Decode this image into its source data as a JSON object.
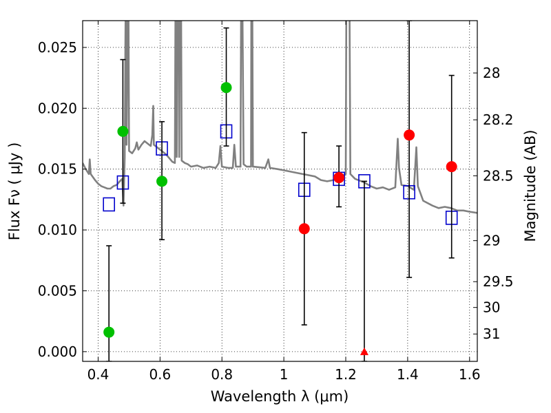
{
  "chart_data": {
    "type": "scatter",
    "xlabel": "Wavelength  λ (μm)",
    "ylabel": "Flux  Fν  ( μJy )",
    "ylabel_right": "Magnitude (AB)",
    "xlim": [
      0.35,
      1.625
    ],
    "ylim": [
      -0.0008,
      0.0272
    ],
    "x_ticks": [
      {
        "value": 0.4,
        "label": "0.4"
      },
      {
        "value": 0.6,
        "label": "0.6"
      },
      {
        "value": 0.8,
        "label": "0.8"
      },
      {
        "value": 1.0,
        "label": "1"
      },
      {
        "value": 1.2,
        "label": "1.2"
      },
      {
        "value": 1.4,
        "label": "1.4"
      },
      {
        "value": 1.6,
        "label": "1.6"
      }
    ],
    "y_ticks": [
      {
        "value": 0.0,
        "label": "0.000"
      },
      {
        "value": 0.005,
        "label": "0.005"
      },
      {
        "value": 0.01,
        "label": "0.010"
      },
      {
        "value": 0.015,
        "label": "0.015"
      },
      {
        "value": 0.02,
        "label": "0.020"
      },
      {
        "value": 0.025,
        "label": "0.025"
      }
    ],
    "right_ticks": [
      {
        "flux": 0.0229,
        "label": "28"
      },
      {
        "flux": 0.01905,
        "label": "28.2"
      },
      {
        "flux": 0.01445,
        "label": "28.5"
      },
      {
        "flux": 0.00912,
        "label": "29"
      },
      {
        "flux": 0.00575,
        "label": "29.5"
      },
      {
        "flux": 0.00363,
        "label": "30"
      },
      {
        "flux": 0.00145,
        "label": "31"
      }
    ],
    "grid": true,
    "series": [
      {
        "name": "green observed",
        "color": "#00c000",
        "marker": "circle",
        "points": [
          {
            "x": 0.435,
            "y": 0.0016,
            "err_lo": -0.0008,
            "err_hi": 0.0087
          },
          {
            "x": 0.48,
            "y": 0.0181,
            "err_lo": 0.0122,
            "err_hi": 0.024
          },
          {
            "x": 0.606,
            "y": 0.014,
            "err_lo": 0.0092,
            "err_hi": 0.0189
          },
          {
            "x": 0.814,
            "y": 0.0217,
            "err_lo": 0.0169,
            "err_hi": 0.0266
          }
        ]
      },
      {
        "name": "red observed",
        "color": "#ff0000",
        "marker": "circle",
        "points": [
          {
            "x": 1.066,
            "y": 0.0101,
            "err_lo": 0.0022,
            "err_hi": 0.018
          },
          {
            "x": 1.178,
            "y": 0.0143,
            "err_lo": 0.0119,
            "err_hi": 0.0169
          },
          {
            "x": 1.405,
            "y": 0.0178,
            "err_lo": 0.0061,
            "err_hi": 0.0272
          },
          {
            "x": 1.542,
            "y": 0.0152,
            "err_lo": 0.0077,
            "err_hi": 0.0227
          }
        ]
      },
      {
        "name": "upper limit",
        "color": "#ff0000",
        "marker": "triangle",
        "points": [
          {
            "x": 1.26,
            "y": 0.0,
            "err_lo": -0.0008,
            "err_hi": 0.014
          }
        ]
      },
      {
        "name": "model photometry",
        "color": "#0000cc",
        "marker": "square",
        "points": [
          {
            "x": 0.435,
            "y": 0.0121
          },
          {
            "x": 0.48,
            "y": 0.0139
          },
          {
            "x": 0.606,
            "y": 0.0167
          },
          {
            "x": 0.814,
            "y": 0.0181
          },
          {
            "x": 1.066,
            "y": 0.0133
          },
          {
            "x": 1.178,
            "y": 0.0142
          },
          {
            "x": 1.26,
            "y": 0.014
          },
          {
            "x": 1.405,
            "y": 0.0131
          },
          {
            "x": 1.542,
            "y": 0.011
          }
        ]
      }
    ],
    "spectrum": {
      "name": "model SED",
      "color": "#808080",
      "points": [
        [
          0.35,
          0.0155
        ],
        [
          0.36,
          0.015
        ],
        [
          0.37,
          0.0146
        ],
        [
          0.373,
          0.0158
        ],
        [
          0.376,
          0.0146
        ],
        [
          0.39,
          0.0141
        ],
        [
          0.4,
          0.0138
        ],
        [
          0.41,
          0.0136
        ],
        [
          0.42,
          0.0135
        ],
        [
          0.43,
          0.0134
        ],
        [
          0.44,
          0.0134
        ],
        [
          0.45,
          0.0136
        ],
        [
          0.46,
          0.0137
        ],
        [
          0.47,
          0.014
        ],
        [
          0.478,
          0.0142
        ],
        [
          0.482,
          0.012
        ],
        [
          0.486,
          0.016
        ],
        [
          0.488,
          0.025
        ],
        [
          0.489,
          0.029
        ],
        [
          0.49,
          0.029
        ],
        [
          0.492,
          0.017
        ],
        [
          0.496,
          0.029
        ],
        [
          0.498,
          0.029
        ],
        [
          0.5,
          0.0165
        ],
        [
          0.51,
          0.0163
        ],
        [
          0.52,
          0.0167
        ],
        [
          0.525,
          0.0172
        ],
        [
          0.53,
          0.0166
        ],
        [
          0.54,
          0.017
        ],
        [
          0.55,
          0.0173
        ],
        [
          0.56,
          0.0171
        ],
        [
          0.57,
          0.0169
        ],
        [
          0.575,
          0.0178
        ],
        [
          0.578,
          0.0202
        ],
        [
          0.58,
          0.017
        ],
        [
          0.59,
          0.0168
        ],
        [
          0.6,
          0.0166
        ],
        [
          0.61,
          0.0164
        ],
        [
          0.62,
          0.0162
        ],
        [
          0.63,
          0.0159
        ],
        [
          0.64,
          0.0156
        ],
        [
          0.648,
          0.0155
        ],
        [
          0.65,
          0.029
        ],
        [
          0.652,
          0.029
        ],
        [
          0.654,
          0.016
        ],
        [
          0.656,
          0.029
        ],
        [
          0.66,
          0.029
        ],
        [
          0.662,
          0.016
        ],
        [
          0.664,
          0.029
        ],
        [
          0.668,
          0.029
        ],
        [
          0.67,
          0.0157
        ],
        [
          0.68,
          0.0155
        ],
        [
          0.69,
          0.0154
        ],
        [
          0.7,
          0.0152
        ],
        [
          0.72,
          0.0153
        ],
        [
          0.74,
          0.0151
        ],
        [
          0.76,
          0.0152
        ],
        [
          0.78,
          0.0151
        ],
        [
          0.79,
          0.0155
        ],
        [
          0.795,
          0.0169
        ],
        [
          0.8,
          0.0152
        ],
        [
          0.82,
          0.0151
        ],
        [
          0.835,
          0.0151
        ],
        [
          0.84,
          0.017
        ],
        [
          0.845,
          0.0152
        ],
        [
          0.86,
          0.0152
        ],
        [
          0.862,
          0.029
        ],
        [
          0.866,
          0.029
        ],
        [
          0.87,
          0.0154
        ],
        [
          0.88,
          0.0152
        ],
        [
          0.894,
          0.0152
        ],
        [
          0.895,
          0.029
        ],
        [
          0.898,
          0.029
        ],
        [
          0.9,
          0.0152
        ],
        [
          0.94,
          0.0151
        ],
        [
          0.95,
          0.0158
        ],
        [
          0.955,
          0.0151
        ],
        [
          0.98,
          0.015
        ],
        [
          1.0,
          0.0149
        ],
        [
          1.04,
          0.0147
        ],
        [
          1.08,
          0.0145
        ],
        [
          1.1,
          0.0144
        ],
        [
          1.12,
          0.0141
        ],
        [
          1.14,
          0.014
        ],
        [
          1.16,
          0.0141
        ],
        [
          1.18,
          0.0143
        ],
        [
          1.2,
          0.0146
        ],
        [
          1.202,
          0.029
        ],
        [
          1.212,
          0.029
        ],
        [
          1.215,
          0.0146
        ],
        [
          1.23,
          0.0142
        ],
        [
          1.26,
          0.0139
        ],
        [
          1.28,
          0.0136
        ],
        [
          1.3,
          0.0134
        ],
        [
          1.32,
          0.0135
        ],
        [
          1.34,
          0.0133
        ],
        [
          1.36,
          0.0135
        ],
        [
          1.368,
          0.0175
        ],
        [
          1.372,
          0.0151
        ],
        [
          1.38,
          0.0137
        ],
        [
          1.4,
          0.0136
        ],
        [
          1.42,
          0.0133
        ],
        [
          1.428,
          0.0168
        ],
        [
          1.433,
          0.0136
        ],
        [
          1.45,
          0.0124
        ],
        [
          1.48,
          0.012
        ],
        [
          1.5,
          0.0118
        ],
        [
          1.52,
          0.0119
        ],
        [
          1.54,
          0.0118
        ],
        [
          1.56,
          0.0116
        ],
        [
          1.58,
          0.0116
        ],
        [
          1.6,
          0.0115
        ],
        [
          1.625,
          0.0114
        ]
      ]
    }
  }
}
